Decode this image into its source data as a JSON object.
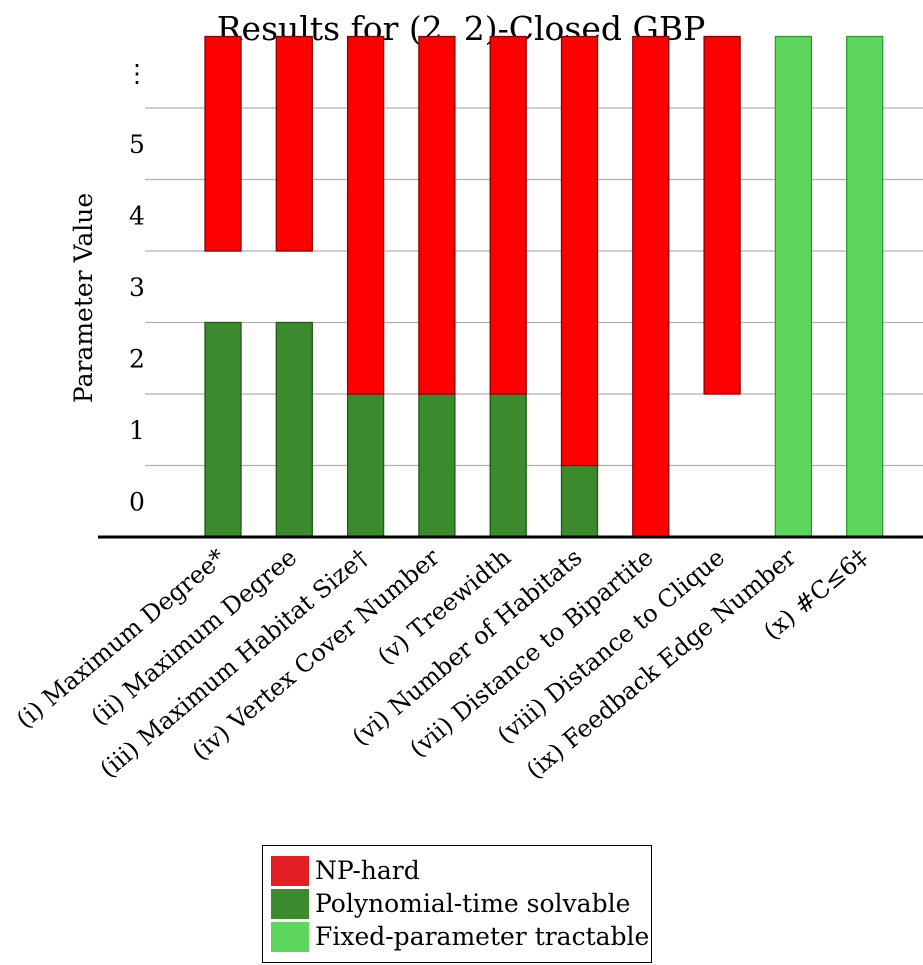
{
  "chart_data": {
    "type": "bar",
    "title": "Results for (2, 2)-Closed GBP",
    "ylabel": "Parameter Value",
    "ytick_labels": [
      "0",
      "1",
      "2",
      "3",
      "4",
      "5",
      "⋮"
    ],
    "ylim": [
      0,
      7
    ],
    "grid": true,
    "categories": [
      "(i) Maximum Degree*",
      "(ii) Maximum Degree",
      "(iii) Maximum Habitat Size†",
      "(iv) Vertex Cover Number",
      "(v) Treewidth",
      "(vi) Number of Habitats",
      "(vii) Distance to Bipartite",
      "(viii) Distance to Clique",
      "(ix) Feedback Edge Number",
      "(x) #C≤6‡"
    ],
    "segments": [
      [
        {
          "class": "poly",
          "from": 0,
          "to": 3
        },
        {
          "class": "np",
          "from": 4,
          "to": 7
        }
      ],
      [
        {
          "class": "poly",
          "from": 0,
          "to": 3
        },
        {
          "class": "np",
          "from": 4,
          "to": 7
        }
      ],
      [
        {
          "class": "poly",
          "from": 0,
          "to": 2
        },
        {
          "class": "np",
          "from": 2,
          "to": 7
        }
      ],
      [
        {
          "class": "poly",
          "from": 0,
          "to": 2
        },
        {
          "class": "np",
          "from": 2,
          "to": 7
        }
      ],
      [
        {
          "class": "poly",
          "from": 0,
          "to": 2
        },
        {
          "class": "np",
          "from": 2,
          "to": 7
        }
      ],
      [
        {
          "class": "poly",
          "from": 0,
          "to": 1
        },
        {
          "class": "np",
          "from": 1,
          "to": 7
        }
      ],
      [
        {
          "class": "np",
          "from": 0,
          "to": 7
        }
      ],
      [
        {
          "class": "np",
          "from": 2,
          "to": 7
        }
      ],
      [
        {
          "class": "fpt",
          "from": 0,
          "to": 7
        }
      ],
      [
        {
          "class": "fpt",
          "from": 0,
          "to": 7
        }
      ]
    ],
    "legend": [
      {
        "key": "np",
        "label": "NP-hard",
        "color": "#e21f26"
      },
      {
        "key": "poly",
        "label": "Polynomial-time solvable",
        "color": "#3b8a2e"
      },
      {
        "key": "fpt",
        "label": "Fixed-parameter tractable",
        "color": "#5cd65c"
      }
    ],
    "colors": {
      "np_fill": "#ff0000",
      "np_stroke": "#8b0000",
      "poly_fill": "#3b8a2e",
      "poly_stroke": "#1f5a17",
      "fpt_fill": "#5cd65c",
      "fpt_stroke": "#2f9a2f",
      "grid": "#b0b0b0"
    }
  }
}
